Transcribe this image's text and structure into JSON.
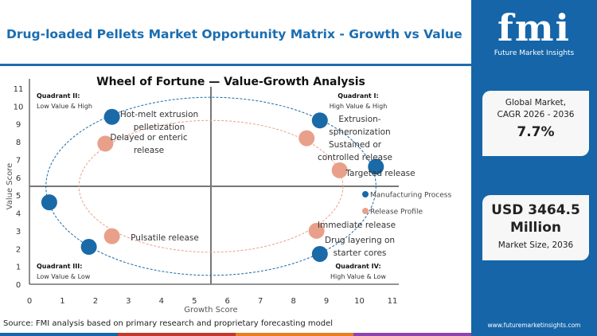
{
  "header": {
    "title": "Drug-loaded Pellets Market Opportunity Matrix - Growth vs Value"
  },
  "sidebar": {
    "logo_text": "fmi",
    "logo_sub": "Future Market Insights",
    "cagr_label_1": "Global Market,",
    "cagr_label_2": "CAGR 2026 - 2036",
    "cagr_value": "7.7%",
    "size_value_1": "USD 3464.5",
    "size_value_2": "Million",
    "size_label": "Market Size, 2036",
    "url": "www.futuremarketinsights.com"
  },
  "footer": {
    "source": "Source: FMI analysis based on primary research and proprietary forecasting model"
  },
  "colors": {
    "brand": "#1565a8",
    "manufacturing": "#1a6aa8",
    "release": "#e9a08a"
  },
  "chart_data": {
    "type": "scatter",
    "title": "Wheel of Fortune — Value-Growth Analysis",
    "xlabel": "Growth Score",
    "ylabel": "Value Score",
    "xlim": [
      0,
      11
    ],
    "ylim": [
      0,
      11
    ],
    "xticks": [
      "0",
      "1",
      "2",
      "3",
      "4",
      "5",
      "6",
      "7",
      "8",
      "9",
      "10",
      "11"
    ],
    "yticks": [
      "0",
      "1",
      "2",
      "3",
      "4",
      "5",
      "6",
      "7",
      "8",
      "9",
      "10",
      "11"
    ],
    "dividers": {
      "x": 5.5,
      "y": 5.5
    },
    "quadrants": [
      {
        "title": "Quadrant I:",
        "subtitle": "High Value & High"
      },
      {
        "title": "Quadrant II:",
        "subtitle": "Low Value & High"
      },
      {
        "title": "Quadrant III:",
        "subtitle": "Low Value & Low"
      },
      {
        "title": "Quadrant IV:",
        "subtitle": "High Value & Low"
      }
    ],
    "legend_position": "right",
    "series": [
      {
        "name": "Manufacturing Process",
        "color": "#1a6aa8",
        "ellipse": {
          "cx": 5.5,
          "cy": 5.5,
          "rx": 5,
          "ry": 5
        },
        "points": [
          {
            "label": "Hot-melt extrusion pelletization",
            "x": 2.5,
            "y": 9.4
          },
          {
            "label": "Extrusion-spheronization",
            "x": 8.8,
            "y": 9.2
          },
          {
            "label": "",
            "x": 10.5,
            "y": 6.6
          },
          {
            "label": "Drug layering on starter cores",
            "x": 8.8,
            "y": 1.7
          },
          {
            "label": "",
            "x": 1.8,
            "y": 2.1
          },
          {
            "label": "",
            "x": 0.6,
            "y": 4.6
          }
        ]
      },
      {
        "name": "Release Profile",
        "color": "#e9a08a",
        "ellipse": {
          "cx": 5.5,
          "cy": 5.5,
          "rx": 4,
          "ry": 3.7
        },
        "points": [
          {
            "label": "Delayed or enteric release",
            "x": 2.3,
            "y": 7.9
          },
          {
            "label": "Sustained or controlled release",
            "x": 8.4,
            "y": 8.2
          },
          {
            "label": "Targeted release",
            "x": 9.4,
            "y": 6.4
          },
          {
            "label": "Immediate release",
            "x": 8.7,
            "y": 3.0
          },
          {
            "label": "Pulsatile release",
            "x": 2.5,
            "y": 2.7
          }
        ]
      }
    ]
  }
}
